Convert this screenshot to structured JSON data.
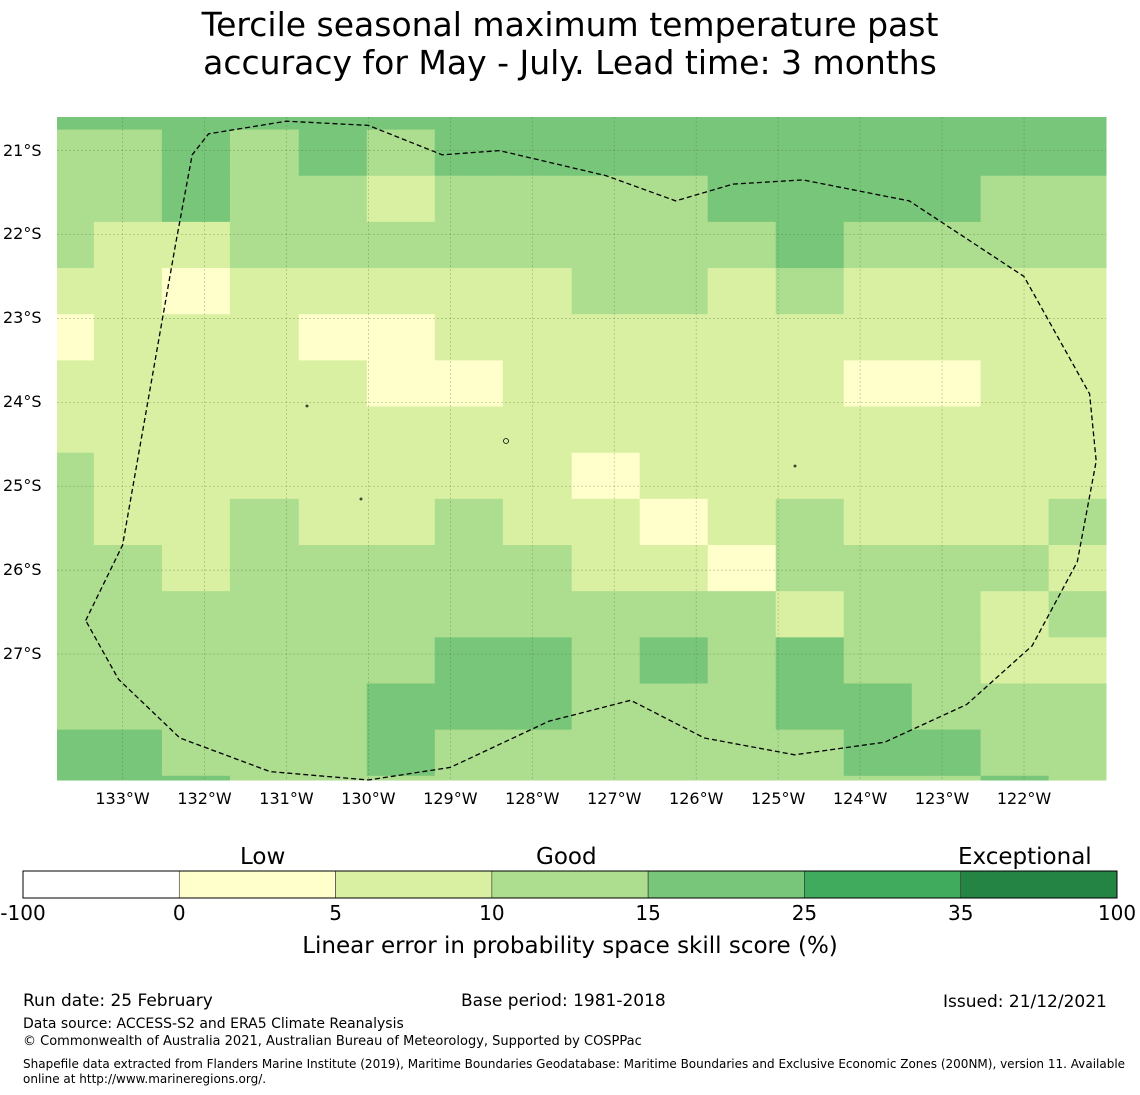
{
  "title_line1": "Tercile seasonal maximum temperature past",
  "title_line2": "accuracy for May - July. Lead time: 3 months",
  "map": {
    "lat_labels": [
      "21°S",
      "22°S",
      "23°S",
      "24°S",
      "25°S",
      "26°S",
      "27°S"
    ],
    "lat_values": [
      -21,
      -22,
      -23,
      -24,
      -25,
      -26,
      -27
    ],
    "lon_labels": [
      "133°W",
      "132°W",
      "131°W",
      "130°W",
      "129°W",
      "128°W",
      "127°W",
      "126°W",
      "125°W",
      "124°W",
      "123°W",
      "122°W"
    ],
    "lon_values": [
      -133,
      -132,
      -131,
      -130,
      -129,
      -128,
      -127,
      -126,
      -125,
      -124,
      -123,
      -122
    ],
    "extent": {
      "lon_min": -133.8,
      "lon_max": -121.0,
      "lat_min": -28.5,
      "lat_max": -20.6
    },
    "cell_grid": {
      "lon_edges": [
        -133.8,
        -133.35,
        -132.52,
        -131.69,
        -130.85,
        -130.02,
        -129.19,
        -128.36,
        -127.52,
        -126.69,
        -125.86,
        -125.03,
        -124.2,
        -123.37,
        -122.53,
        -121.7,
        -121.0
      ],
      "lat_edges": [
        -20.6,
        -20.75,
        -21.3,
        -21.85,
        -22.4,
        -22.95,
        -23.5,
        -24.05,
        -24.6,
        -25.15,
        -25.7,
        -26.25,
        -26.8,
        -27.35,
        -27.9,
        -28.45,
        -28.5
      ],
      "category_rows": [
        [
          4,
          4,
          4,
          4,
          4,
          4,
          4,
          4,
          4,
          4,
          4,
          4,
          4,
          4,
          4,
          4
        ],
        [
          3,
          3,
          4,
          3,
          4,
          3,
          4,
          4,
          4,
          4,
          4,
          4,
          4,
          4,
          4,
          4
        ],
        [
          3,
          3,
          4,
          3,
          3,
          2,
          3,
          3,
          3,
          3,
          4,
          4,
          4,
          4,
          3,
          3
        ],
        [
          3,
          2,
          2,
          3,
          3,
          3,
          3,
          3,
          3,
          3,
          3,
          4,
          3,
          3,
          3,
          3
        ],
        [
          2,
          2,
          1,
          2,
          2,
          2,
          2,
          2,
          3,
          3,
          2,
          3,
          2,
          2,
          2,
          2
        ],
        [
          1,
          2,
          2,
          2,
          1,
          1,
          2,
          2,
          2,
          2,
          2,
          2,
          2,
          2,
          2,
          2
        ],
        [
          2,
          2,
          2,
          2,
          2,
          1,
          1,
          2,
          2,
          2,
          2,
          2,
          1,
          1,
          2,
          2
        ],
        [
          2,
          2,
          2,
          2,
          2,
          2,
          2,
          2,
          2,
          2,
          2,
          2,
          2,
          2,
          2,
          2
        ],
        [
          3,
          2,
          2,
          2,
          2,
          2,
          2,
          2,
          1,
          2,
          2,
          2,
          2,
          2,
          2,
          2
        ],
        [
          3,
          2,
          2,
          3,
          2,
          2,
          3,
          2,
          2,
          1,
          2,
          3,
          2,
          2,
          2,
          3
        ],
        [
          3,
          3,
          2,
          3,
          3,
          3,
          3,
          3,
          2,
          2,
          1,
          3,
          3,
          3,
          3,
          2
        ],
        [
          3,
          3,
          3,
          3,
          3,
          3,
          3,
          3,
          3,
          3,
          3,
          2,
          3,
          3,
          2,
          3
        ],
        [
          3,
          3,
          3,
          3,
          3,
          3,
          4,
          4,
          3,
          4,
          3,
          4,
          3,
          3,
          2,
          2
        ],
        [
          3,
          3,
          3,
          3,
          3,
          4,
          4,
          4,
          3,
          3,
          3,
          4,
          4,
          3,
          3,
          3
        ],
        [
          4,
          4,
          3,
          3,
          3,
          4,
          3,
          3,
          3,
          3,
          3,
          3,
          4,
          4,
          3,
          3
        ],
        [
          4,
          4,
          4,
          3,
          3,
          3,
          3,
          3,
          3,
          3,
          3,
          3,
          3,
          3,
          4,
          3
        ]
      ]
    },
    "eez_boundary": [
      [
        -133.45,
        -26.6
      ],
      [
        -133.0,
        -25.7
      ],
      [
        -132.35,
        -22.1
      ],
      [
        -132.15,
        -21.05
      ],
      [
        -131.95,
        -20.8
      ],
      [
        -131.0,
        -20.65
      ],
      [
        -130.0,
        -20.7
      ],
      [
        -129.1,
        -21.05
      ],
      [
        -128.4,
        -21.0
      ],
      [
        -127.1,
        -21.3
      ],
      [
        -126.25,
        -21.6
      ],
      [
        -125.55,
        -21.4
      ],
      [
        -124.7,
        -21.35
      ],
      [
        -123.4,
        -21.6
      ],
      [
        -122.0,
        -22.5
      ],
      [
        -121.2,
        -23.9
      ],
      [
        -121.12,
        -24.7
      ],
      [
        -121.35,
        -25.9
      ],
      [
        -121.9,
        -26.9
      ],
      [
        -122.7,
        -27.6
      ],
      [
        -123.7,
        -28.05
      ],
      [
        -124.8,
        -28.2
      ],
      [
        -125.9,
        -28.0
      ],
      [
        -126.8,
        -27.55
      ],
      [
        -127.8,
        -27.8
      ],
      [
        -129.0,
        -28.35
      ],
      [
        -130.0,
        -28.5
      ],
      [
        -131.2,
        -28.4
      ],
      [
        -132.3,
        -28.0
      ],
      [
        -133.05,
        -27.3
      ],
      [
        -133.45,
        -26.6
      ]
    ]
  },
  "colorbar": {
    "categories": [
      "Low",
      "Good",
      "Exceptional"
    ],
    "ticks": [
      "-100",
      "0",
      "5",
      "10",
      "15",
      "25",
      "35",
      "100"
    ],
    "colors": [
      "#ffffff",
      "#ffffcc",
      "#d9f0a3",
      "#addd8e",
      "#78c679",
      "#41ab5d",
      "#238443"
    ],
    "label": "Linear error in probability space skill score (%)"
  },
  "footer": {
    "run_date": "Run date: 25 February",
    "base_period": "Base period: 1981-2018",
    "issued": "Issued: 21/12/2021",
    "data_source": "Data source: ACCESS-S2 and ERA5 Climate Reanalysis",
    "copyright": "© Commonwealth of Australia 2021, Australian Bureau of Meteorology, Supported by COSPPac",
    "shapefile_note": "Shapefile data extracted from Flanders Marine Institute (2019), Maritime Boundaries Geodatabase: Maritime Boundaries and Exclusive Economic Zones (200NM), version 11. Available online at http://www.marineregions.org/."
  }
}
